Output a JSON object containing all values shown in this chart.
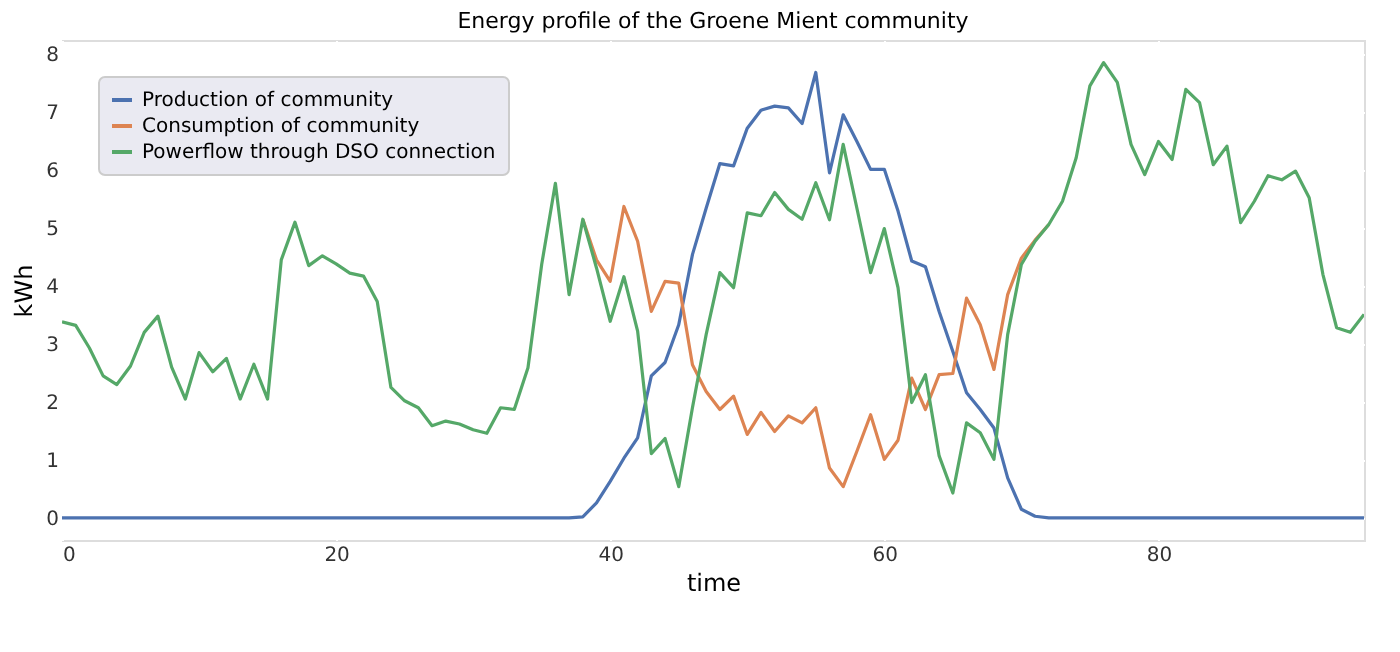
{
  "chart_data": {
    "type": "line",
    "title": "Energy profile of the Groene Mient community",
    "xlabel": "time",
    "ylabel": "kWh",
    "x": [
      0,
      1,
      2,
      3,
      4,
      5,
      6,
      7,
      8,
      9,
      10,
      11,
      12,
      13,
      14,
      15,
      16,
      17,
      18,
      19,
      20,
      21,
      22,
      23,
      24,
      25,
      26,
      27,
      28,
      29,
      30,
      31,
      32,
      33,
      34,
      35,
      36,
      37,
      38,
      39,
      40,
      41,
      42,
      43,
      44,
      45,
      46,
      47,
      48,
      49,
      50,
      51,
      52,
      53,
      54,
      55,
      56,
      57,
      58,
      59,
      60,
      61,
      62,
      63,
      64,
      65,
      66,
      67,
      68,
      69,
      70,
      71,
      72,
      73,
      74,
      75,
      76,
      77,
      78,
      79,
      80,
      81,
      82,
      83,
      84,
      85,
      86,
      87,
      88,
      89,
      90,
      91,
      92,
      93,
      94,
      95
    ],
    "series": [
      {
        "name": "Production of community",
        "color": "#4c72b0",
        "values": [
          0,
          0,
          0,
          0,
          0,
          0,
          0,
          0,
          0,
          0,
          0,
          0,
          0,
          0,
          0,
          0,
          0,
          0,
          0,
          0,
          0,
          0,
          0,
          0,
          0,
          0,
          0,
          0,
          0,
          0,
          0,
          0,
          0,
          0,
          0,
          0,
          0,
          0,
          0.02,
          0.26,
          0.63,
          1.03,
          1.38,
          2.45,
          2.68,
          3.33,
          4.54,
          5.34,
          6.11,
          6.07,
          6.72,
          7.03,
          7.1,
          7.07,
          6.8,
          7.68,
          5.95,
          6.95,
          6.49,
          6.01,
          6.01,
          5.29,
          4.43,
          4.33,
          3.56,
          2.87,
          2.16,
          1.87,
          1.55,
          0.69,
          0.15,
          0.03,
          0,
          0,
          0,
          0,
          0,
          0,
          0,
          0,
          0,
          0,
          0,
          0,
          0,
          0,
          0,
          0,
          0,
          0,
          0,
          0,
          0,
          0,
          0,
          0
        ]
      },
      {
        "name": "Consumption of community",
        "color": "#dd8452",
        "values": [
          null,
          null,
          null,
          null,
          null,
          null,
          null,
          null,
          null,
          null,
          null,
          null,
          null,
          null,
          null,
          null,
          null,
          null,
          null,
          null,
          null,
          null,
          null,
          null,
          null,
          null,
          null,
          null,
          null,
          null,
          null,
          null,
          null,
          null,
          null,
          null,
          null,
          null,
          5.15,
          4.45,
          4.08,
          5.37,
          4.77,
          3.56,
          4.08,
          4.05,
          2.64,
          2.18,
          1.87,
          2.1,
          1.44,
          1.82,
          1.49,
          1.76,
          1.64,
          1.9,
          0.86,
          0.54,
          1.15,
          1.78,
          1.01,
          1.34,
          2.41,
          1.87,
          2.47,
          2.49,
          3.79,
          3.33,
          2.56,
          3.85,
          4.48,
          4.79,
          5.06,
          null,
          null,
          null,
          null,
          null,
          null,
          null,
          null,
          null,
          null,
          null,
          null,
          null,
          null,
          null,
          null,
          null,
          null,
          null,
          null,
          null,
          null,
          null
        ]
      },
      {
        "name": "Powerflow through DSO connection",
        "color": "#55a868",
        "values": [
          3.38,
          3.32,
          2.93,
          2.45,
          2.3,
          2.62,
          3.2,
          3.48,
          2.6,
          2.05,
          2.85,
          2.52,
          2.75,
          2.05,
          2.65,
          2.05,
          4.45,
          5.1,
          4.35,
          4.52,
          4.38,
          4.22,
          4.17,
          3.73,
          2.25,
          2.02,
          1.9,
          1.59,
          1.67,
          1.62,
          1.52,
          1.46,
          1.9,
          1.87,
          2.59,
          4.37,
          5.77,
          3.85,
          5.15,
          4.31,
          3.39,
          4.16,
          3.22,
          1.11,
          1.37,
          0.54,
          1.9,
          3.16,
          4.23,
          3.97,
          5.26,
          5.21,
          5.61,
          5.32,
          5.15,
          5.78,
          5.14,
          6.44,
          5.34,
          4.23,
          4.99,
          3.97,
          1.99,
          2.47,
          1.07,
          0.43,
          1.64,
          1.47,
          1.01,
          3.16,
          4.37,
          4.77,
          5.06,
          5.46,
          6.21,
          7.45,
          7.85,
          7.51,
          6.44,
          5.92,
          6.49,
          6.18,
          7.39,
          7.16,
          6.09,
          6.41,
          5.09,
          5.46,
          5.9,
          5.83,
          5.98,
          5.52,
          4.2,
          3.28,
          3.2,
          3.51
        ]
      }
    ],
    "xlim": [
      0,
      95
    ],
    "xticks": [
      0,
      20,
      40,
      60,
      80
    ],
    "ylim": [
      -0.38,
      8.24
    ],
    "yticks": [
      0,
      1,
      2,
      3,
      4,
      5,
      6,
      7,
      8
    ],
    "grid": true,
    "legend": "top left",
    "marker": "none",
    "line_style": "solid"
  }
}
